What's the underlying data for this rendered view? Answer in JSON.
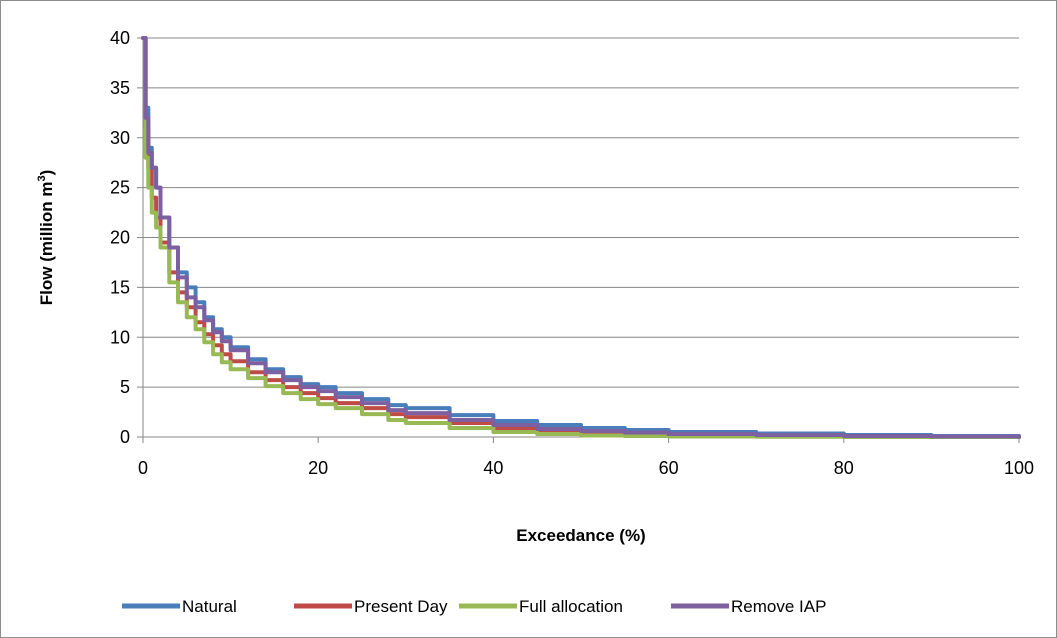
{
  "chart_data": {
    "type": "line",
    "title": "",
    "xlabel": "Exceedance (%)",
    "ylabel_main": "Flow (million m",
    "ylabel_sup": "3",
    "ylabel_close": ")",
    "xlim": [
      0,
      100
    ],
    "ylim": [
      0,
      40
    ],
    "x_ticks": [
      0,
      20,
      40,
      60,
      80,
      100
    ],
    "y_ticks": [
      0,
      5,
      10,
      15,
      20,
      25,
      30,
      35,
      40
    ],
    "x_tick_labels": [
      "0",
      "20",
      "40",
      "60",
      "80",
      "100"
    ],
    "y_tick_labels": [
      "0",
      "5",
      "10",
      "15",
      "20",
      "25",
      "30",
      "35",
      "40"
    ],
    "grid": "horizontal",
    "legend_position": "bottom",
    "series": [
      {
        "name": "Natural",
        "color": "#4a7ebb",
        "x": [
          0,
          0.3,
          0.6,
          1,
          1.5,
          2,
          3,
          4,
          5,
          6,
          7,
          8,
          9,
          10,
          12,
          14,
          16,
          18,
          20,
          22,
          25,
          28,
          30,
          35,
          40,
          45,
          50,
          55,
          60,
          70,
          80,
          90,
          100
        ],
        "y": [
          40,
          33,
          29,
          27,
          25,
          22,
          19,
          16.5,
          15,
          13.5,
          12,
          10.8,
          10,
          9,
          7.8,
          6.8,
          6,
          5.3,
          5,
          4.4,
          3.8,
          3.2,
          2.9,
          2.2,
          1.6,
          1.2,
          0.9,
          0.7,
          0.5,
          0.35,
          0.2,
          0.1,
          0
        ]
      },
      {
        "name": "Present Day",
        "color": "#be4b48",
        "x": [
          0,
          0.3,
          0.6,
          1,
          1.5,
          2,
          3,
          4,
          5,
          6,
          7,
          8,
          9,
          10,
          12,
          14,
          16,
          18,
          20,
          22,
          25,
          28,
          30,
          35,
          40,
          45,
          50,
          55,
          60,
          70,
          80,
          90,
          100
        ],
        "y": [
          40,
          31,
          27,
          24,
          22,
          19.5,
          16.5,
          14.5,
          13,
          11.5,
          10.3,
          9.2,
          8.3,
          7.6,
          6.5,
          5.7,
          5,
          4.4,
          3.9,
          3.4,
          2.9,
          2.3,
          2,
          1.4,
          0.9,
          0.6,
          0.4,
          0.3,
          0.2,
          0.15,
          0.1,
          0.05,
          0
        ]
      },
      {
        "name": "Full allocation",
        "color": "#98b954",
        "x": [
          0,
          0.3,
          0.6,
          1,
          1.5,
          2,
          3,
          4,
          5,
          6,
          7,
          8,
          9,
          10,
          12,
          14,
          16,
          18,
          20,
          22,
          25,
          28,
          30,
          35,
          40,
          45,
          50,
          55,
          60,
          70,
          80,
          90,
          100
        ],
        "y": [
          40,
          28,
          25,
          22.5,
          21,
          19,
          15.5,
          13.5,
          12,
          10.8,
          9.5,
          8.3,
          7.5,
          6.8,
          5.9,
          5.1,
          4.4,
          3.8,
          3.3,
          2.9,
          2.3,
          1.7,
          1.4,
          0.9,
          0.5,
          0.3,
          0.15,
          0.1,
          0.05,
          0.02,
          0,
          0,
          0
        ]
      },
      {
        "name": "Remove IAP",
        "color": "#7d60a0",
        "x": [
          0,
          0.3,
          0.6,
          1,
          1.5,
          2,
          3,
          4,
          5,
          6,
          7,
          8,
          9,
          10,
          12,
          14,
          16,
          18,
          20,
          22,
          25,
          28,
          30,
          35,
          40,
          45,
          50,
          55,
          60,
          70,
          80,
          90,
          100
        ],
        "y": [
          40,
          32,
          28.5,
          27,
          25,
          22,
          19,
          16,
          14,
          13,
          11.7,
          10.5,
          9.6,
          8.7,
          7.4,
          6.5,
          5.7,
          5,
          4.6,
          4,
          3.4,
          2.7,
          2.4,
          1.7,
          1.2,
          0.8,
          0.6,
          0.45,
          0.3,
          0.2,
          0.1,
          0.05,
          0
        ]
      }
    ]
  }
}
